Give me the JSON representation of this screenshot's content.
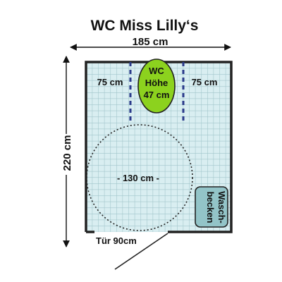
{
  "title": "WC Miss Lilly‘s",
  "width_label": "185 cm",
  "height_label": "220 cm",
  "wc": {
    "line1": "WC",
    "line2": "Höhe",
    "line3": "47 cm"
  },
  "left_clearance": "75 cm",
  "right_clearance": "75 cm",
  "turning_circle": "- 130 cm -",
  "sink": {
    "line1": "Wasch-",
    "line2": "becken"
  },
  "door_label": "Tür 90cm",
  "colors": {
    "floor": "#d9eef1",
    "tile_grid": "#9fc4c9",
    "wall": "#222222",
    "wc_fill": "#8cd21e",
    "sink_fill": "#93c4c8",
    "clearance_marks": "#2a3a8a"
  }
}
